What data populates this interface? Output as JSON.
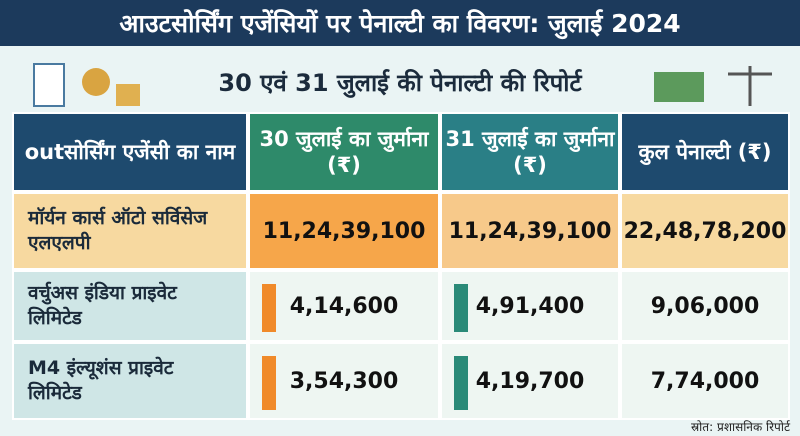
{
  "header": {
    "title": "आउटसोर्सिंग एजेंसियों पर पेनाल्टी का विवरण: जुलाई 2024",
    "subtitle": "30 एवं 31 जुलाई की पेनाल्टी की रिपोर्ट"
  },
  "table": {
    "columns": [
      "outसोर्सिंग एजेंसी का नाम",
      "30 जुलाई का जुर्माना (₹)",
      "31 जुलाई का जुर्माना (₹)",
      "कुल पेनाल्टी (₹)"
    ],
    "rows": [
      [
        "मॉर्यन कार्स ऑटो सर्विसेज एलएलपी",
        "11,24,39,100",
        "11,24,39,100",
        "22,48,78,200"
      ],
      [
        "वर्चुअस इंडिया प्राइवेट लिमिटेड",
        "4,14,600",
        "4,91,400",
        "9,06,000"
      ],
      [
        "M4 इंल्यूशंस प्राइवेट लिमिटेड",
        "3,54,300",
        "4,19,700",
        "7,74,000"
      ]
    ]
  },
  "footer": {
    "source": "स्रोत: प्रशासनिक रिपोर्ट"
  }
}
